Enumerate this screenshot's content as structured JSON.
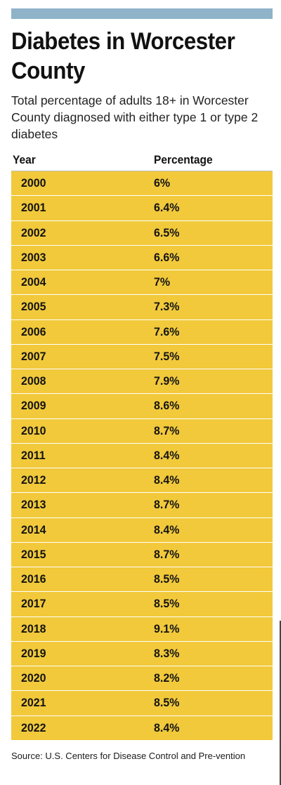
{
  "accent_color": "#f1c93b",
  "bar_color": "#8fb3c9",
  "title": "Diabetes in Worcester County",
  "subtitle": "Total percentage of adults 18+ in Worcester County diagnosed with either type 1 or type 2 diabetes",
  "source": "Source: U.S. Centers for Disease Control and Pre-vention",
  "chart_data": {
    "type": "table",
    "title": "Diabetes in Worcester County",
    "subtitle": "Total percentage of adults 18+ in Worcester County diagnosed with either type 1 or type 2 diabetes",
    "columns": [
      "Year",
      "Percentage"
    ],
    "rows": [
      [
        "2000",
        "6%"
      ],
      [
        "2001",
        "6.4%"
      ],
      [
        "2002",
        "6.5%"
      ],
      [
        "2003",
        "6.6%"
      ],
      [
        "2004",
        "7%"
      ],
      [
        "2005",
        "7.3%"
      ],
      [
        "2006",
        "7.6%"
      ],
      [
        "2007",
        "7.5%"
      ],
      [
        "2008",
        "7.9%"
      ],
      [
        "2009",
        "8.6%"
      ],
      [
        "2010",
        "8.7%"
      ],
      [
        "2011",
        "8.4%"
      ],
      [
        "2012",
        "8.4%"
      ],
      [
        "2013",
        "8.7%"
      ],
      [
        "2014",
        "8.4%"
      ],
      [
        "2015",
        "8.7%"
      ],
      [
        "2016",
        "8.5%"
      ],
      [
        "2017",
        "8.5%"
      ],
      [
        "2018",
        "9.1%"
      ],
      [
        "2019",
        "8.3%"
      ],
      [
        "2020",
        "8.2%"
      ],
      [
        "2021",
        "8.5%"
      ],
      [
        "2022",
        "8.4%"
      ]
    ],
    "source": "Source: U.S. Centers for Disease Control and Pre-vention"
  }
}
